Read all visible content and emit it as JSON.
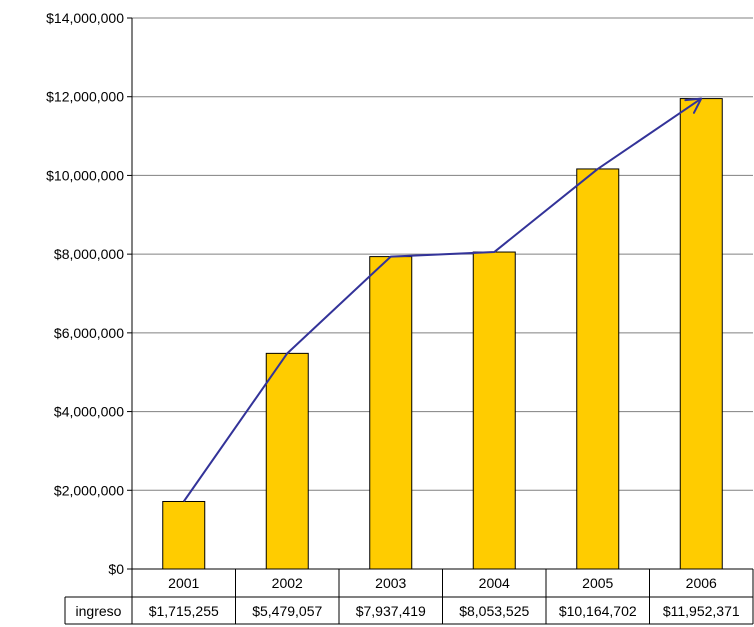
{
  "chart_data": {
    "type": "bar",
    "categories": [
      "2001",
      "2002",
      "2003",
      "2004",
      "2005",
      "2006"
    ],
    "series": [
      {
        "name": "ingreso",
        "values": [
          1715255,
          5479057,
          7937419,
          8053525,
          10164702,
          11952371
        ]
      }
    ],
    "table_labels": [
      "$1,715,255",
      "$5,479,057",
      "$7,937,419",
      "$8,053,525",
      "$10,164,702",
      "$11,952,371"
    ],
    "y_tick_labels": [
      "$0",
      "$2,000,000",
      "$4,000,000",
      "$6,000,000",
      "$8,000,000",
      "$10,000,000",
      "$12,000,000",
      "$14,000,000"
    ],
    "y_ticks": [
      0,
      2000000,
      4000000,
      6000000,
      8000000,
      10000000,
      12000000,
      14000000
    ],
    "ylim": [
      0,
      14000000
    ],
    "grid": true,
    "trend_arrow": true,
    "data_table": true,
    "colors": {
      "bar": "#FFCC00",
      "bar_edge": "#000000",
      "trend_line": "#333399",
      "grid": "#808080"
    }
  }
}
